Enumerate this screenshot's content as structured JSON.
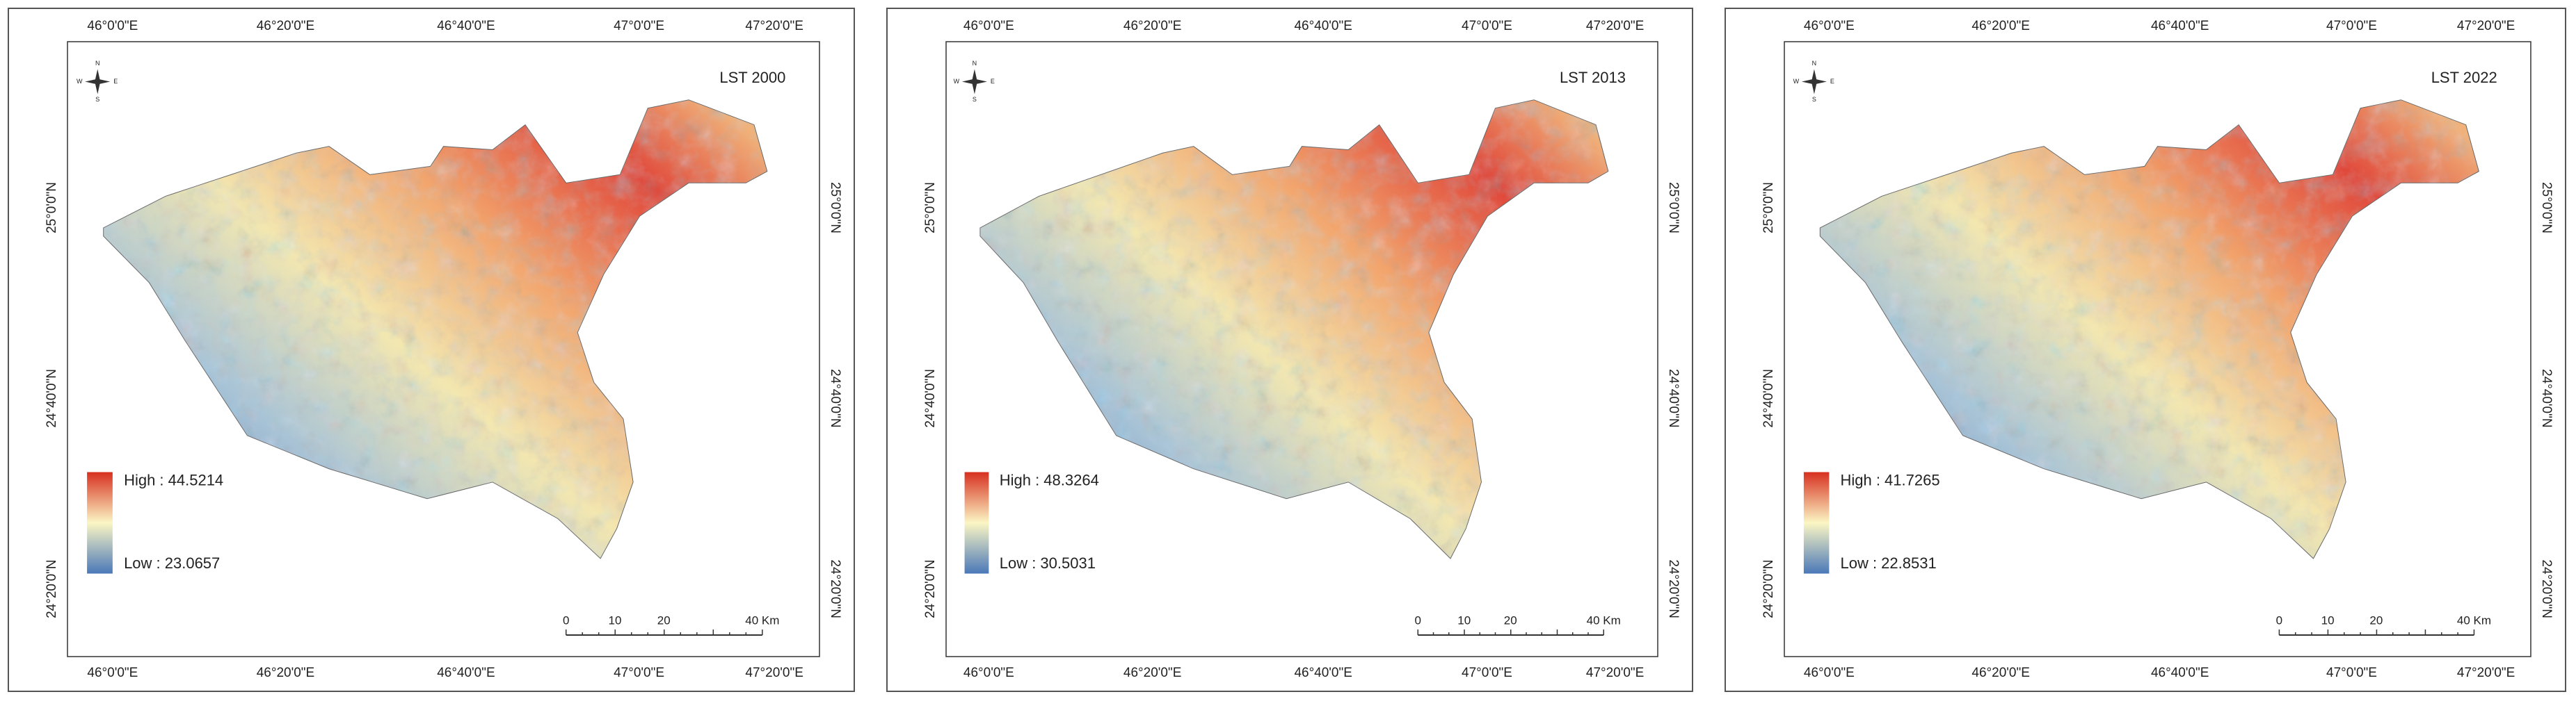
{
  "panels": [
    {
      "title": "LST 2000",
      "legend": {
        "high": "High : 44.5214",
        "low": "Low : 23.0657"
      },
      "lon_labels_top": [
        "46°0'0\"E",
        "46°20'0\"E",
        "46°40'0\"E",
        "47°0'0\"E",
        "47°20'0\"E"
      ],
      "lon_labels_bottom": [
        "46°0'0\"E",
        "46°20'0\"E",
        "46°40'0\"E",
        "47°0'0\"E",
        "47°20'0\"E"
      ],
      "lat_labels_left": [
        "25°0'0\"N",
        "24°40'0\"N",
        "24°20'0\"N"
      ],
      "lat_labels_right": [
        "25°0'0\"N",
        "24°40'0\"N",
        "24°20'0\"N"
      ],
      "scale_labels": [
        "0",
        "10",
        "20",
        "40 Km"
      ],
      "compass": [
        "N",
        "E",
        "S",
        "W"
      ]
    },
    {
      "title": "LST 2013",
      "legend": {
        "high": "High : 48.3264",
        "low": "Low : 30.5031"
      },
      "lon_labels_top": [
        "46°0'0\"E",
        "46°20'0\"E",
        "46°40'0\"E",
        "47°0'0\"E",
        "47°20'0\"E"
      ],
      "lon_labels_bottom": [
        "46°0'0\"E",
        "46°20'0\"E",
        "46°40'0\"E",
        "47°0'0\"E",
        "47°20'0\"E"
      ],
      "lat_labels_left": [
        "25°0'0\"N",
        "24°40'0\"N",
        "24°20'0\"N"
      ],
      "lat_labels_right": [
        "25°0'0\"N",
        "24°40'0\"N",
        "24°20'0\"N"
      ],
      "scale_labels": [
        "0",
        "10",
        "20",
        "40 Km"
      ],
      "compass": [
        "N",
        "E",
        "S",
        "W"
      ]
    },
    {
      "title": "LST 2022",
      "legend": {
        "high": "High : 41.7265",
        "low": "Low : 22.8531"
      },
      "lon_labels_top": [
        "46°0'0\"E",
        "46°20'0\"E",
        "46°40'0\"E",
        "47°0'0\"E",
        "47°20'0\"E"
      ],
      "lon_labels_bottom": [
        "46°0'0\"E",
        "46°20'0\"E",
        "46°40'0\"E",
        "47°0'0\"E",
        "47°20'0\"E"
      ],
      "lat_labels_left": [
        "25°0'0\"N",
        "24°40'0\"N",
        "24°20'0\"N"
      ],
      "lat_labels_right": [
        "25°0'0\"N",
        "24°40'0\"N",
        "24°20'0\"N"
      ],
      "scale_labels": [
        "0",
        "10",
        "20",
        "40 Km"
      ],
      "compass": [
        "N",
        "E",
        "S",
        "W"
      ]
    }
  ]
}
